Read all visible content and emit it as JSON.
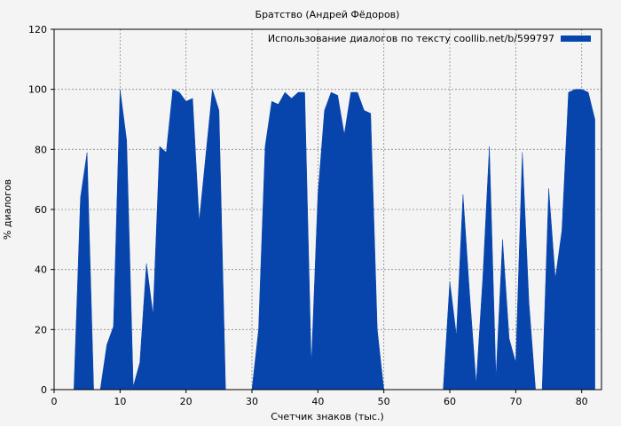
{
  "chart_data": {
    "type": "area",
    "title": "Братство (Андрей Фёдоров)",
    "xlabel": "Счетчик знаков (тыс.)",
    "ylabel": "% диалогов",
    "xlim": [
      0,
      83
    ],
    "ylim": [
      0,
      120
    ],
    "x_ticks": [
      0,
      10,
      20,
      30,
      40,
      50,
      60,
      70,
      80
    ],
    "y_ticks": [
      0,
      20,
      40,
      60,
      80,
      100,
      120
    ],
    "grid": true,
    "legend_position": "top-right",
    "series": [
      {
        "name": "Использование диалогов по тексту coollib.net/b/599797",
        "color": "#0745ac",
        "x": [
          3,
          4,
          5,
          6,
          7,
          8,
          9,
          10,
          11,
          12,
          13,
          14,
          15,
          16,
          17,
          18,
          19,
          20,
          21,
          22,
          23,
          24,
          25,
          26,
          27,
          28,
          29,
          30,
          31,
          32,
          33,
          34,
          35,
          36,
          37,
          38,
          39,
          40,
          41,
          42,
          43,
          44,
          45,
          46,
          47,
          48,
          49,
          50,
          51,
          52,
          53,
          54,
          55,
          56,
          57,
          58,
          59,
          60,
          61,
          62,
          63,
          64,
          65,
          66,
          67,
          68,
          69,
          70,
          71,
          72,
          73,
          74,
          75,
          76,
          77,
          78,
          79,
          80,
          81,
          82
        ],
        "values": [
          0,
          64,
          79,
          0,
          0,
          15,
          21,
          100,
          83,
          1,
          9,
          42,
          25,
          81,
          79,
          100,
          99,
          96,
          97,
          56,
          78,
          100,
          93,
          0,
          0,
          0,
          0,
          0,
          20,
          81,
          96,
          95,
          99,
          97,
          99,
          99,
          8,
          65,
          93,
          99,
          98,
          85,
          99,
          99,
          93,
          92,
          20,
          0,
          0,
          0,
          0,
          0,
          0,
          0,
          0,
          0,
          0,
          36,
          18,
          65,
          32,
          2,
          37,
          81,
          4,
          50,
          17,
          9,
          79,
          29,
          0,
          0,
          67,
          37,
          53,
          99,
          100,
          100,
          99,
          90
        ]
      }
    ]
  }
}
